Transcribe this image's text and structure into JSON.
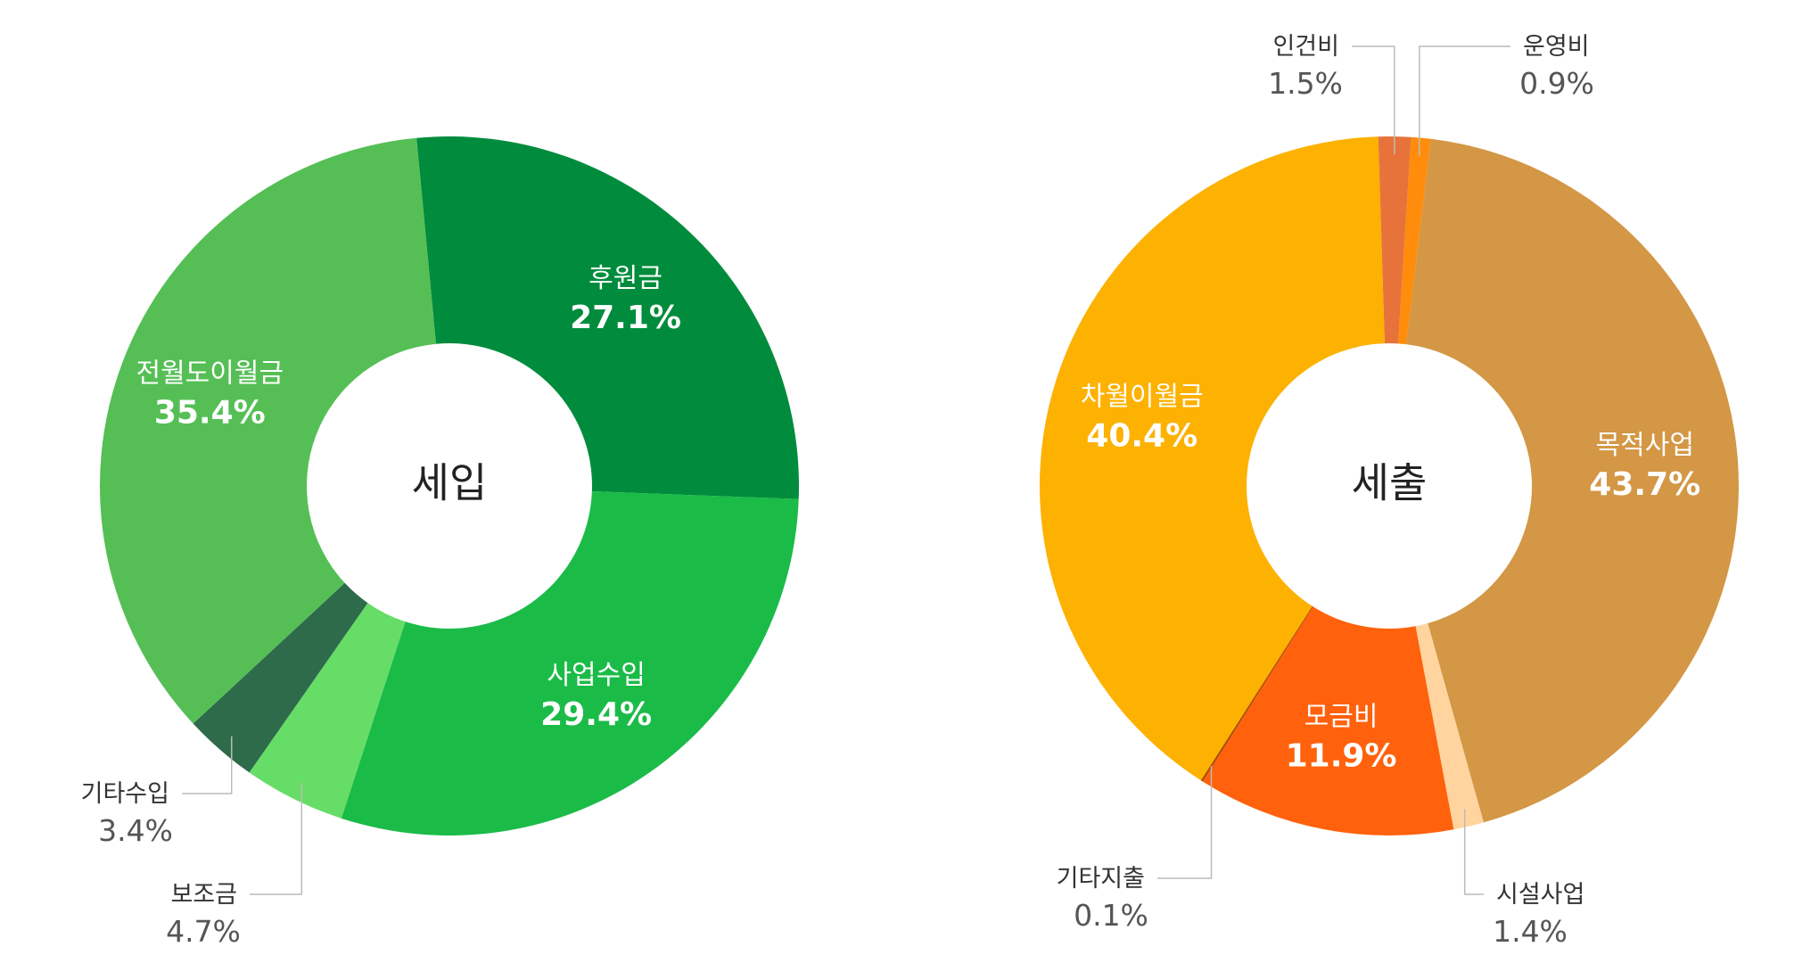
{
  "chart_data": [
    {
      "type": "pie",
      "title": "세입",
      "slices": [
        {
          "label": "후원금",
          "value": 27.1,
          "display": "27.1%",
          "color": "#008c3c"
        },
        {
          "label": "사업수입",
          "value": 29.4,
          "display": "29.4%",
          "color": "#1bbb48"
        },
        {
          "label": "보조금",
          "value": 4.7,
          "display": "4.7%",
          "color": "#66dd66"
        },
        {
          "label": "기타수입",
          "value": 3.4,
          "display": "3.4%",
          "color": "#2e6b4a"
        },
        {
          "label": "전월도이월금",
          "value": 35.4,
          "display": "35.4%",
          "color": "#55bf55"
        }
      ]
    },
    {
      "type": "pie",
      "title": "세출",
      "slices": [
        {
          "label": "운영비",
          "value": 0.9,
          "display": "0.9%",
          "color": "#ff8c0a"
        },
        {
          "label": "목적사업",
          "value": 43.7,
          "display": "43.7%",
          "color": "#d39745"
        },
        {
          "label": "시설사업",
          "value": 1.4,
          "display": "1.4%",
          "color": "#ffd49e"
        },
        {
          "label": "모금비",
          "value": 11.9,
          "display": "11.9%",
          "color": "#ff610c"
        },
        {
          "label": "기타지출",
          "value": 0.1,
          "display": "0.1%",
          "color": "#b04a00"
        },
        {
          "label": "차월이월금",
          "value": 40.4,
          "display": "40.4%",
          "color": "#fdb100"
        },
        {
          "label": "인건비",
          "value": 1.5,
          "display": "1.5%",
          "color": "#e8733a"
        }
      ]
    }
  ]
}
